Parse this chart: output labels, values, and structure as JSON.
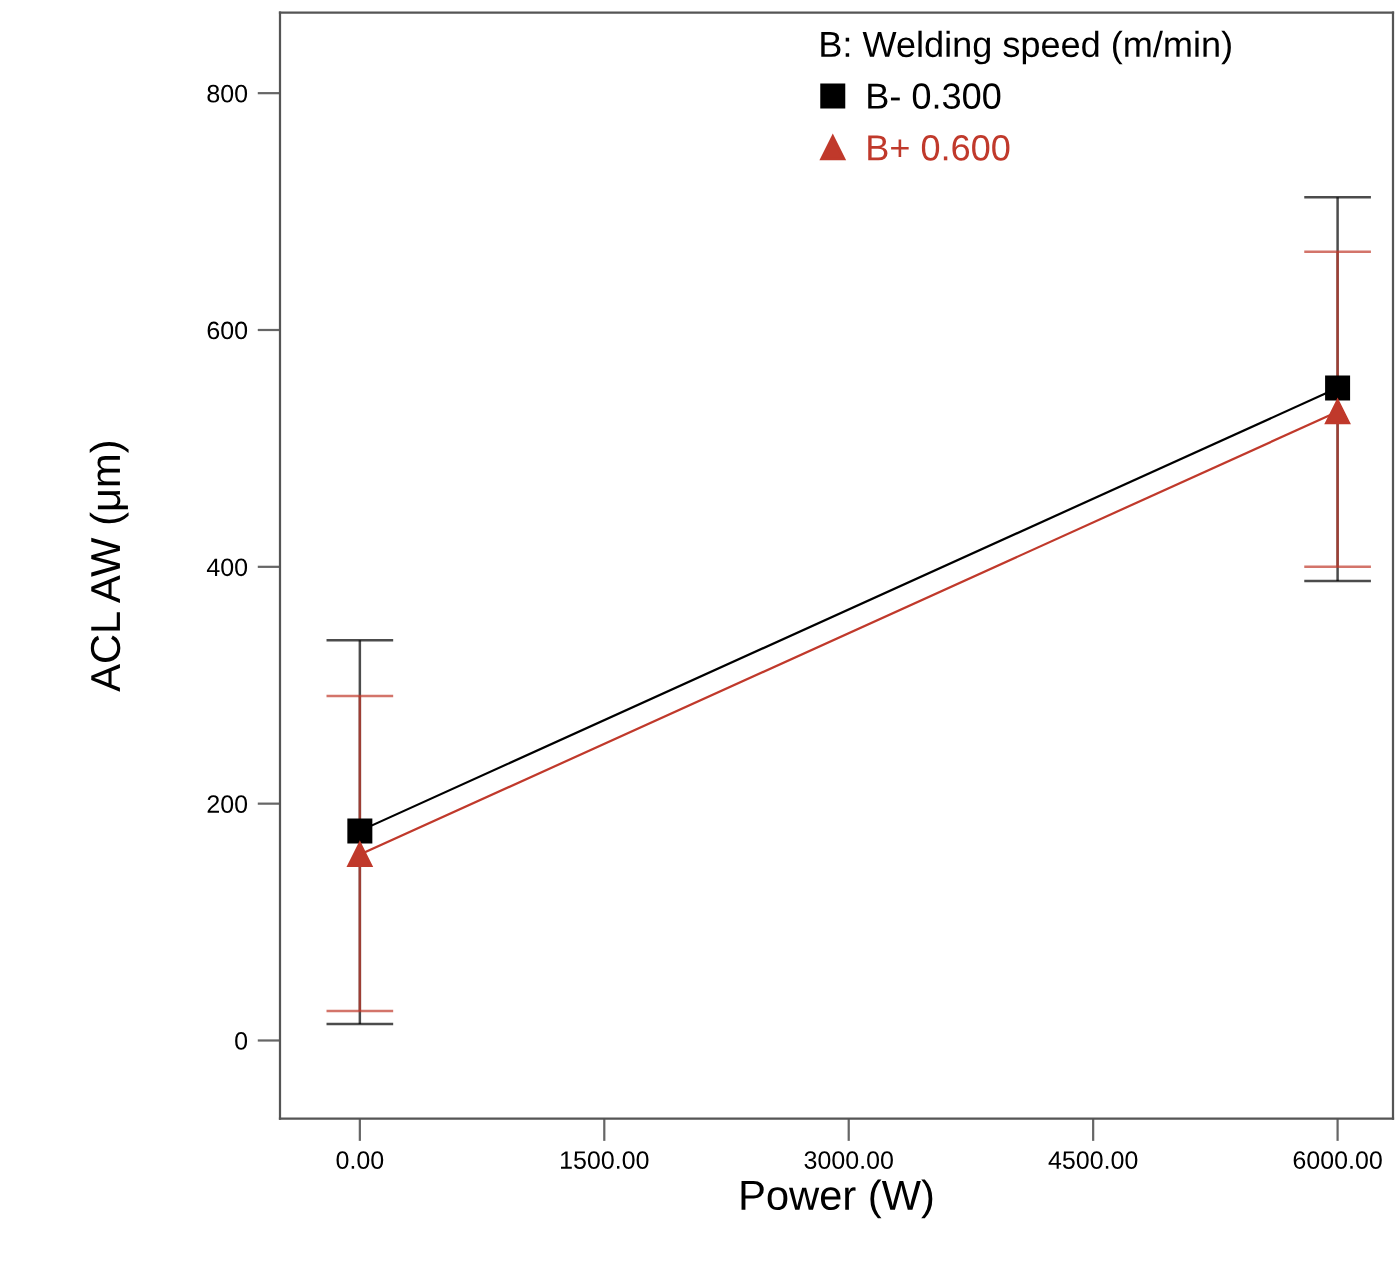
{
  "chart_data": {
    "type": "line",
    "xlabel": "Power (W)",
    "ylabel": "ACL AW (μm)",
    "legend_title": "B: Welding speed (m/min)",
    "x": [
      0,
      6000
    ],
    "series": [
      {
        "name": "B- 0.300",
        "color": "#000000",
        "marker": "square",
        "values": [
          177,
          551
        ],
        "errors": [
          [
            14,
            338
          ],
          [
            388,
            712
          ]
        ]
      },
      {
        "name": "B+ 0.600",
        "color": "#c0392b",
        "marker": "triangle",
        "values": [
          157,
          531
        ],
        "errors": [
          [
            25,
            291
          ],
          [
            400,
            666
          ]
        ]
      }
    ],
    "xlim": [
      -490,
      6340
    ],
    "ylim": [
      -66,
      868
    ],
    "xticks": [
      {
        "value": 0,
        "label": "0.00"
      },
      {
        "value": 1500,
        "label": "1500.00"
      },
      {
        "value": 3000,
        "label": "3000.00"
      },
      {
        "value": 4500,
        "label": "4500.00"
      },
      {
        "value": 6000,
        "label": "6000.00"
      }
    ],
    "yticks": [
      0,
      200,
      400,
      600,
      800
    ],
    "grid": false,
    "legend": "top",
    "line_style": "solid"
  }
}
